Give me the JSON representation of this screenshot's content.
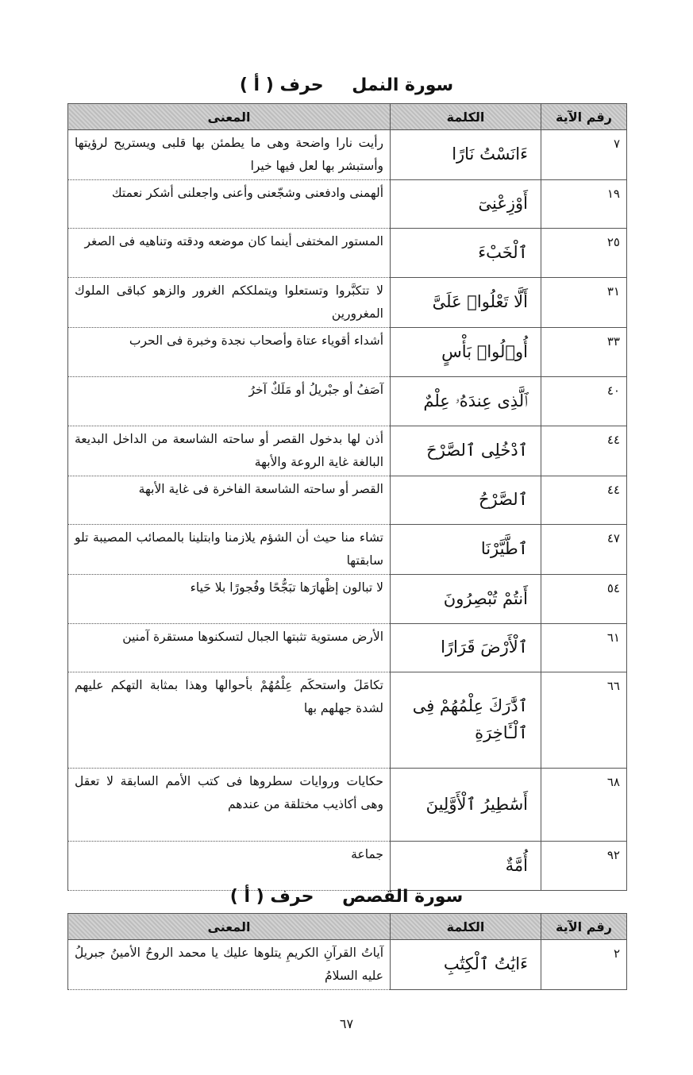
{
  "sections": [
    {
      "title": {
        "surah": "سورة النمل",
        "letter": "حرف ( أ )"
      },
      "table": {
        "headers": [
          "رقم الآية",
          "الكلمة",
          "المعنى"
        ],
        "rows": [
          [
            "٧",
            "ءَانَسْتُ نَارًا",
            "رأيت نارا واضحة وهى ما يطمئن بها قلبى ويستريح لرؤيتها وأستبشر بها لعل فيها خيرا"
          ],
          [
            "١٩",
            "أَوْزِعْنِىٓ",
            "ألهمنى وادفعنى وشجّعنى وأعنى واجعلنى أشكر نعمتك"
          ],
          [
            "٢٥",
            "ٱلْخَبْءَ",
            "المستور المختفى أينما كان موضعه ودقته وتناهيه فى الصغر"
          ],
          [
            "٣١",
            "أَلَّا تَعْلُوا۟ عَلَىَّ",
            "لا تتكبَّروا وتستعلوا ويتملككم الغرور والزهو كباقى الملوك المغرورين"
          ],
          [
            "٣٣",
            "أُو۟لُوا۟ بَأْسٍ",
            "أشداء أقوياء عتاة وأصحاب نجدة وخبرة فى الحرب"
          ],
          [
            "٤٠",
            "ٱلَّذِى عِندَهُۥ عِلْمٌ",
            "آصَفُ أو جبْريلُ أو مَلَكٌ آخرُ"
          ],
          [
            "٤٤",
            "ٱدْخُلِى ٱلصَّرْحَ",
            "أذن لها بدخول القصر أو ساحته الشاسعة من الداخل البديعة البالغة غاية الروعة والأبهة"
          ],
          [
            "٤٤",
            "ٱلصَّرْحُ",
            "القصر أو ساحته الشاسعة الفاخرة فى غاية الأبهة"
          ],
          [
            "٤٧",
            "ٱطَّيَّرْنَا",
            "تشاء منا حيث أن الشؤم يلازمنا وابتلينا بالمصائب المصيبة تلو سابقتها"
          ],
          [
            "٥٤",
            "أَنتُمْ تُبْصِرُونَ",
            "لا تبالون إظْهارَها تبَجُّحًا وفُجورًا بلا حَياء"
          ],
          [
            "٦١",
            "ٱلْأَرْضَ قَرَارًا",
            "الأرض مستوية تثبتها الجبال لتسكنوها مستقرة آمنين"
          ],
          [
            "٦٦",
            "ٱدَّٰرَكَ عِلْمُهُمْ فِى ٱلْـَٔاخِرَةِ",
            "تكامَلَ واستحكَم عِلْمُهُمْ بأحوالها وهذا بمثابة التهكم عليهم لشدة جهلهم بها"
          ],
          [
            "٦٨",
            "أَسَٰطِيرُ ٱلْأَوَّلِينَ",
            "حكايات وروايات سطروها فى كتب الأمم السابقة لا تعقل وهى أكاذيب مختلقة من عندهم"
          ],
          [
            "٩٢",
            "أُمَّةٌ",
            "جماعة"
          ]
        ]
      }
    },
    {
      "title": {
        "surah": "سورة القصص",
        "letter": "حرف ( أ )"
      },
      "table": {
        "headers": [
          "رقم الآية",
          "الكلمة",
          "المعنى"
        ],
        "rows": [
          [
            "٢",
            "ءَايَٰتُ ٱلْكِتَٰبِ",
            "آياتُ القرآنِ الكريمِ يتلوها عليك يا محمد الروحُ الأمينُ جبريلُ عليه السلامُ"
          ]
        ]
      }
    }
  ],
  "page_number": "٦٧"
}
